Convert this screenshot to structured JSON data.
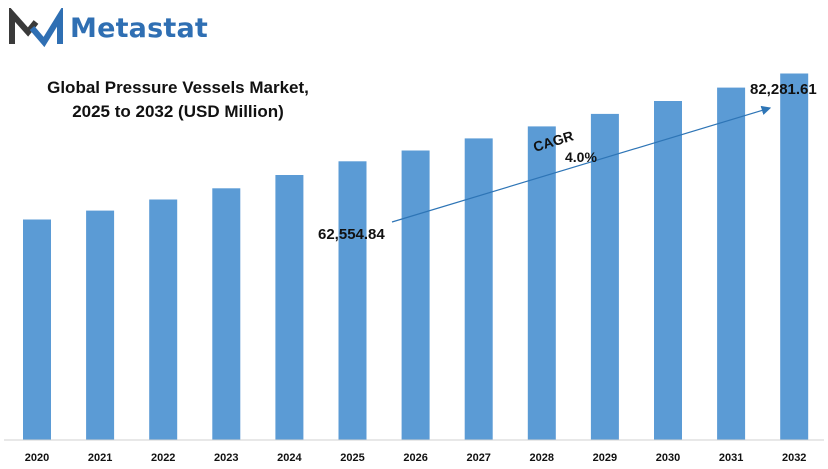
{
  "brand": {
    "name": "Metastat",
    "logo_icon": "metastat-m-logo-icon",
    "color": "#2f6fb3",
    "icon_dark": "#3a3a3a"
  },
  "chart_data": {
    "type": "bar",
    "title_line1": "Global Pressure Vessels Market,",
    "title_line2": "2025 to 2032 (USD Million)",
    "categories": [
      "2020",
      "2021",
      "2022",
      "2023",
      "2024",
      "2025",
      "2026",
      "2027",
      "2028",
      "2029",
      "2030",
      "2031",
      "2032"
    ],
    "values": [
      49500,
      51500,
      54000,
      56500,
      59500,
      62554.84,
      65000,
      67700,
      70400,
      73200,
      76100,
      79100,
      82281.61
    ],
    "ylim": [
      0,
      88000
    ],
    "bar_color": "#5b9bd5",
    "grid": false,
    "annotations": {
      "start_label": "62,554.84",
      "end_label": "82,281.61",
      "cagr_label": "CAGR",
      "cagr_value": "4.0%",
      "arrow_color": "#2e75b6"
    }
  }
}
